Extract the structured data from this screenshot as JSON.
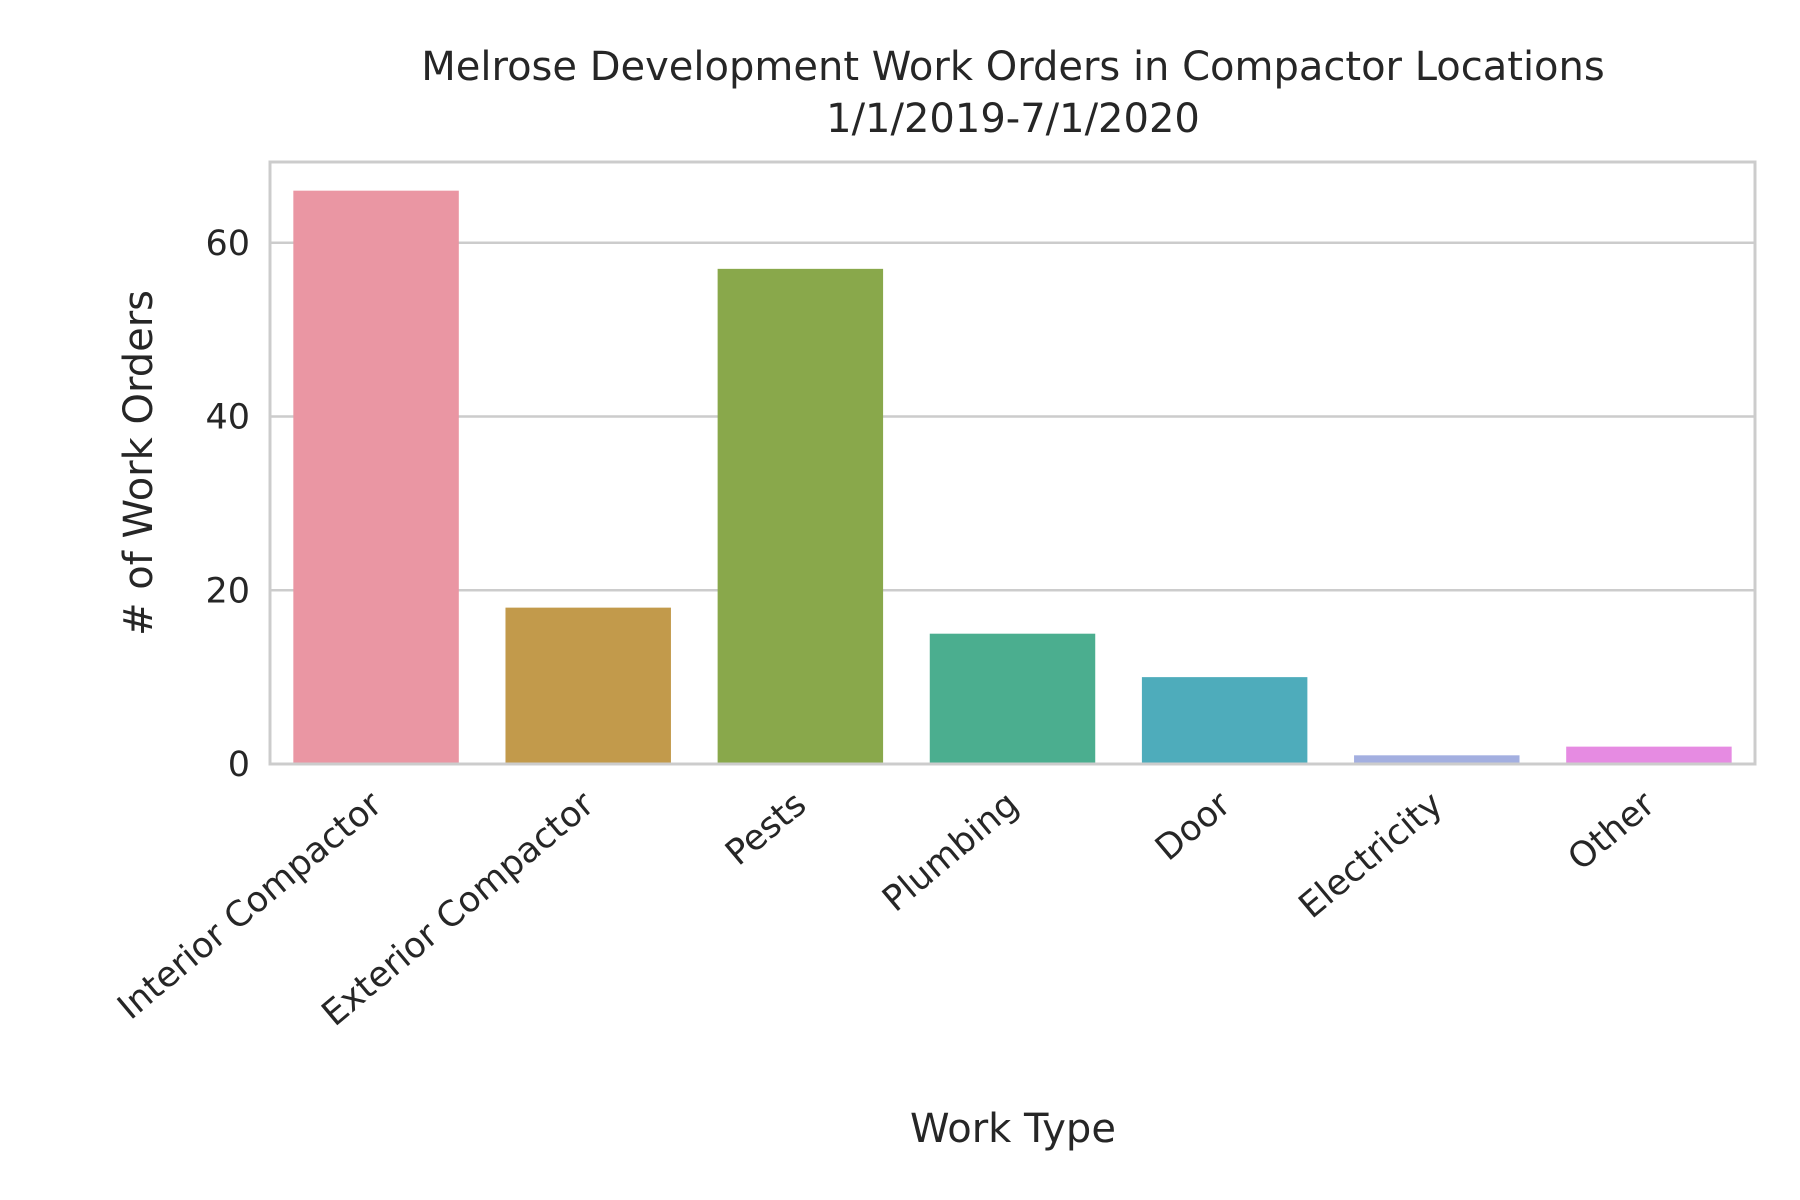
{
  "chart_data": {
    "type": "bar",
    "title": "Melrose Development Work Orders in Compactor Locations",
    "subtitle": "1/1/2019-7/1/2020",
    "xlabel": "Work Type",
    "ylabel": "# of Work Orders",
    "categories": [
      "Interior Compactor",
      "Exterior Compactor",
      "Pests",
      "Plumbing",
      "Door",
      "Electricity",
      "Other"
    ],
    "values": [
      66,
      18,
      57,
      15,
      10,
      1,
      2
    ],
    "colors": [
      "#ea96a3",
      "#c29a4b",
      "#89a84b",
      "#4bae8f",
      "#4eacbb",
      "#a3afe0",
      "#e68be2"
    ],
    "yticks": [
      0,
      20,
      40,
      60
    ],
    "ylim": [
      0,
      69.3
    ],
    "grid": "horizontal",
    "legend": "none"
  }
}
